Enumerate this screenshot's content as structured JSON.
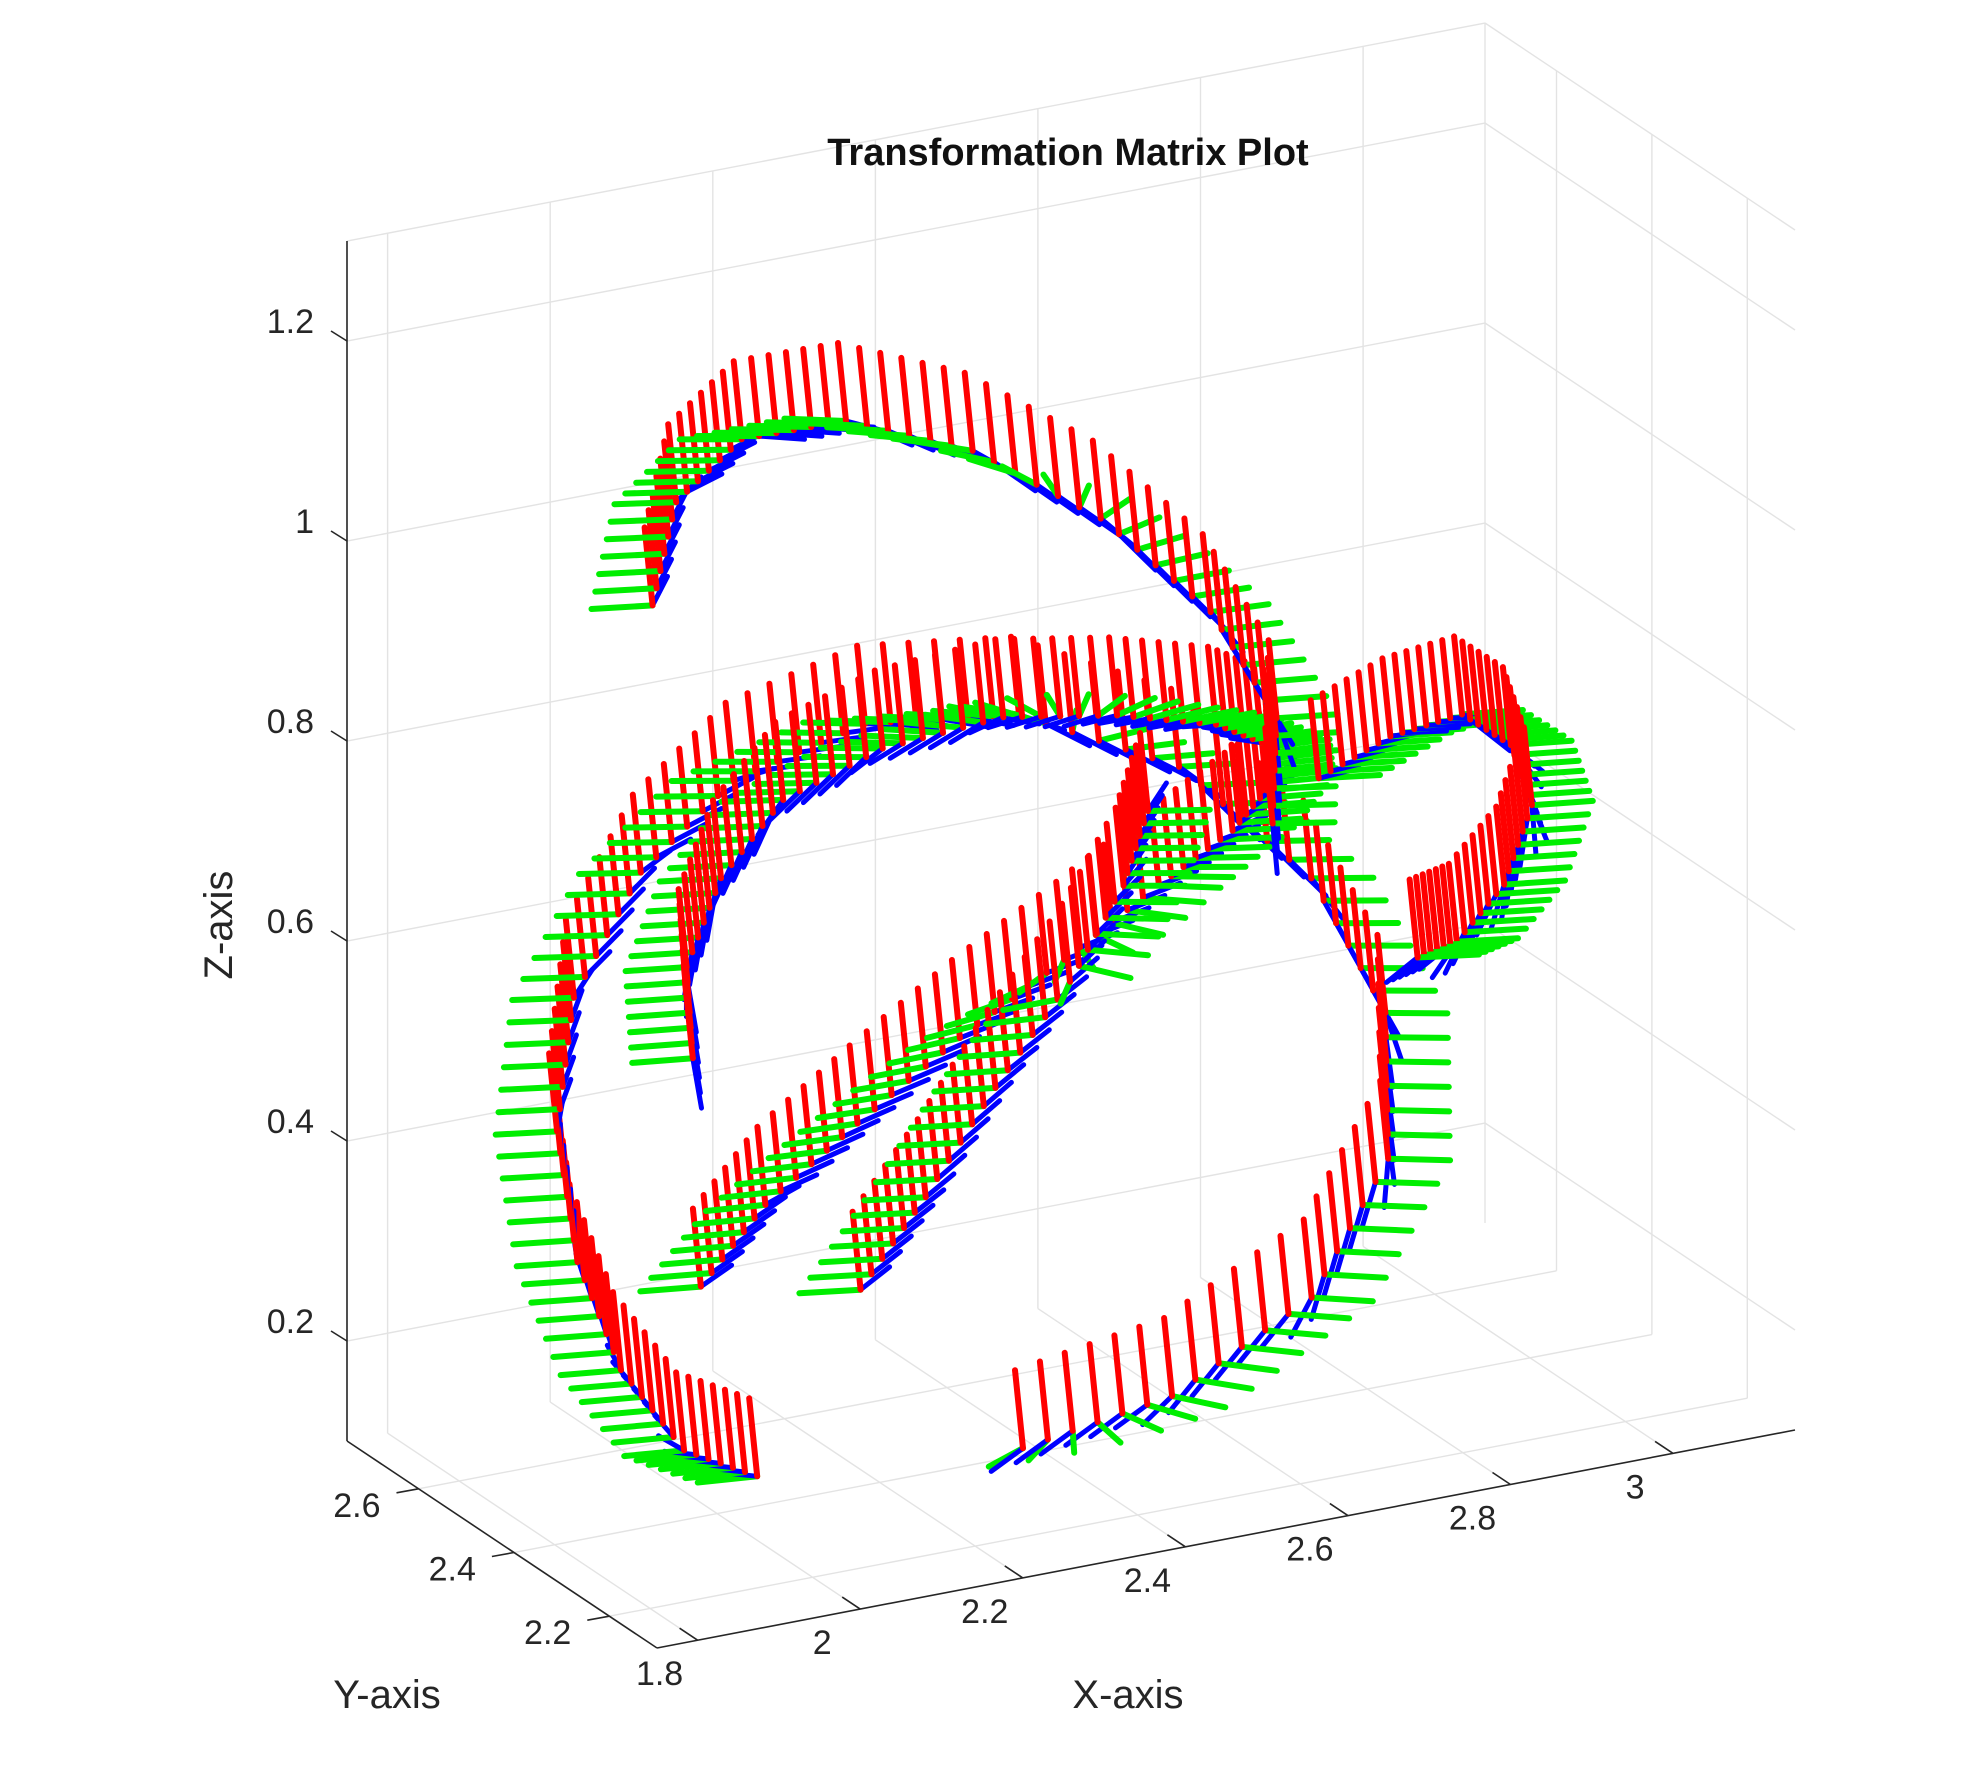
{
  "chart_data": {
    "type": "3d-line",
    "title": "Transformation Matrix Plot",
    "xlabel": "X-axis",
    "ylabel": "Y-axis",
    "zlabel": "Z-axis",
    "xlim": [
      1.75,
      3.15
    ],
    "ylim": [
      2.1,
      2.75
    ],
    "zlim": [
      0.1,
      1.3
    ],
    "xticks": [
      "1.8",
      "2",
      "2.2",
      "2.4",
      "2.6",
      "2.8",
      "3"
    ],
    "yticks": [
      "2.2",
      "2.4",
      "2.6"
    ],
    "zticks": [
      "0.2",
      "0.4",
      "0.6",
      "0.8",
      "1",
      "1.2"
    ],
    "grid": true,
    "frame_colors": {
      "x_axis": "#ff0000",
      "y_axis": "#00ee00",
      "z_axis": "#0000ff"
    },
    "series": [
      {
        "x": [
          2.02,
          1.93,
          1.87,
          1.84,
          1.85,
          1.9,
          2.0,
          2.12,
          2.27,
          2.43,
          2.58,
          2.69,
          2.74,
          2.72,
          2.62,
          2.46,
          2.3
        ],
        "y": [
          2.35,
          2.35,
          2.38,
          2.42,
          2.48,
          2.53,
          2.56,
          2.57,
          2.55,
          2.5,
          2.42,
          2.33,
          2.26,
          2.22,
          2.21,
          2.23,
          2.27
        ],
        "z": [
          0.15,
          0.19,
          0.27,
          0.37,
          0.48,
          0.59,
          0.69,
          0.76,
          0.8,
          0.8,
          0.75,
          0.65,
          0.53,
          0.4,
          0.28,
          0.2,
          0.16
        ]
      },
      {
        "x": [
          1.98,
          2.03,
          2.12,
          2.24,
          2.38,
          2.52,
          2.64,
          2.72,
          2.74,
          2.69,
          2.58,
          2.44,
          2.28,
          2.14,
          2.04,
          1.98,
          1.97
        ],
        "y": [
          2.4,
          2.35,
          2.31,
          2.3,
          2.32,
          2.36,
          2.41,
          2.46,
          2.5,
          2.53,
          2.55,
          2.55,
          2.53,
          2.5,
          2.46,
          2.43,
          2.4
        ],
        "z": [
          0.33,
          0.42,
          0.5,
          0.57,
          0.62,
          0.66,
          0.68,
          0.7,
          0.72,
          0.74,
          0.76,
          0.78,
          0.78,
          0.76,
          0.71,
          0.64,
          0.56
        ]
      },
      {
        "x": [
          1.95,
          2.02,
          2.13,
          2.27,
          2.42,
          2.56,
          2.66,
          2.7,
          2.66
        ],
        "y": [
          2.45,
          2.52,
          2.57,
          2.59,
          2.58,
          2.55,
          2.49,
          2.42,
          2.36
        ],
        "z": [
          1.0,
          1.07,
          1.1,
          1.09,
          1.04,
          0.96,
          0.87,
          0.78,
          0.7
        ]
      },
      {
        "x": [
          2.74,
          2.84,
          2.94,
          3.0,
          3.02,
          2.98,
          2.91,
          2.85
        ],
        "y": [
          2.4,
          2.42,
          2.44,
          2.44,
          2.43,
          2.42,
          2.4,
          2.38
        ],
        "z": [
          0.72,
          0.74,
          0.74,
          0.7,
          0.64,
          0.57,
          0.53,
          0.53
        ]
      },
      {
        "x": [
          2.2,
          2.28,
          2.36,
          2.44,
          2.5,
          2.53
        ],
        "y": [
          2.44,
          2.44,
          2.43,
          2.41,
          2.4,
          2.4
        ],
        "z": [
          0.28,
          0.36,
          0.46,
          0.56,
          0.65,
          0.72
        ]
      }
    ]
  }
}
